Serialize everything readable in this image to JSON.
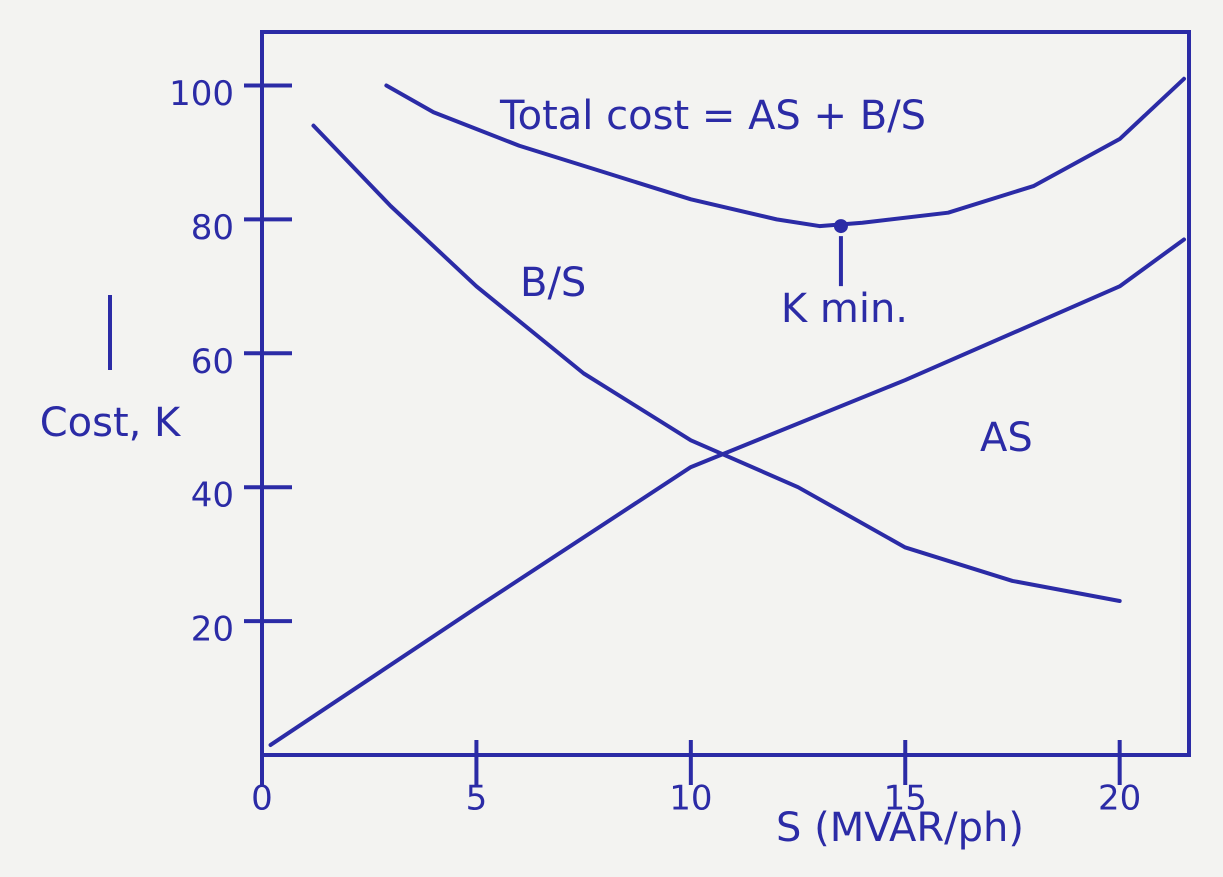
{
  "chart_data": {
    "type": "line",
    "x_label": "S (MVAR/ph)",
    "y_label": "Cost, K",
    "xlim": [
      0,
      21.5
    ],
    "ylim": [
      0,
      105
    ],
    "xticks": [
      0,
      5,
      10,
      15,
      20
    ],
    "yticks": [
      20,
      40,
      60,
      80,
      100
    ],
    "grid": false,
    "series": [
      {
        "name": "Total cost = AS + B/S",
        "color": "#2b2ba6",
        "x": [
          2.9,
          4,
          6,
          8,
          10,
          12,
          13,
          14,
          16,
          18,
          20,
          21.5
        ],
        "values": [
          100,
          96,
          91,
          87,
          83,
          80,
          79,
          79.5,
          81,
          85,
          92,
          101
        ]
      },
      {
        "name": "B/S",
        "color": "#2b2ba6",
        "x": [
          1.2,
          3,
          5,
          7.5,
          10,
          12.5,
          15,
          17.5,
          20
        ],
        "values": [
          94,
          82,
          70,
          57,
          47,
          40,
          31,
          26,
          23
        ]
      },
      {
        "name": "AS",
        "color": "#2b2ba6",
        "x": [
          0.2,
          5,
          10,
          15,
          20,
          21.5
        ],
        "values": [
          1.5,
          22,
          43,
          56,
          70,
          77
        ]
      }
    ],
    "annotations": [
      {
        "text": "K min.",
        "x": 13.5,
        "y": 79
      }
    ]
  }
}
